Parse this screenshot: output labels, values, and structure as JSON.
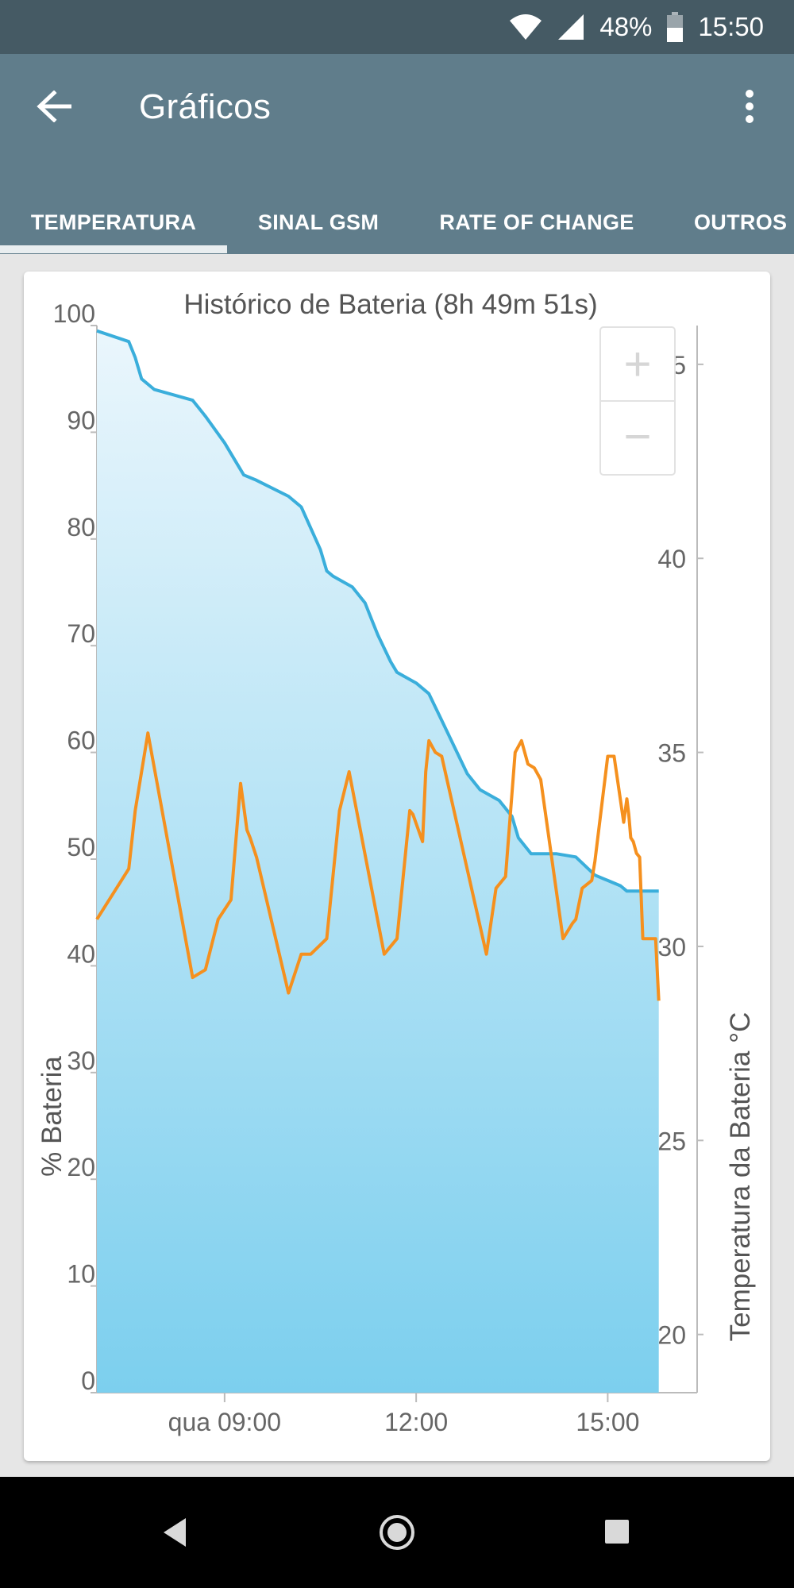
{
  "status_bar": {
    "battery_percent": "48%",
    "time": "15:50"
  },
  "app_bar": {
    "title": "Gráficos",
    "back_icon": "arrow-back-icon",
    "menu_icon": "more-vert-icon"
  },
  "tabs": [
    {
      "label": "TEMPERATURA",
      "selected": true
    },
    {
      "label": "SINAL GSM",
      "selected": false
    },
    {
      "label": "RATE OF CHANGE",
      "selected": false
    },
    {
      "label": "OUTROS",
      "selected": false
    }
  ],
  "chart": {
    "zoom_in_label": "+",
    "zoom_out_label": "−"
  },
  "chart_data": {
    "type": "area",
    "title": "Histórico de Bateria (8h 49m 51s)",
    "ylabel": "% Bateria",
    "y2label": "Temperatura da Bateria °C",
    "xticks": [
      "qua 09:00",
      "12:00",
      "15:00"
    ],
    "x_tick_hours": [
      9,
      12,
      15
    ],
    "xlim": [
      7,
      16.4
    ],
    "ylim": [
      0,
      100
    ],
    "y2lim": [
      18.5,
      46
    ],
    "yticks": [
      0,
      10,
      20,
      30,
      40,
      50,
      60,
      70,
      80,
      90,
      100
    ],
    "y2ticks": [
      20,
      25,
      30,
      35,
      40,
      45
    ],
    "colors": {
      "battery_line": "#3aaedb",
      "battery_fill_top": "#eaf6fc",
      "battery_fill_bottom": "#7ccfee",
      "temperature": "#f5901e",
      "axis": "#bbbbbb",
      "text": "#666666"
    },
    "series": [
      {
        "axis": "left",
        "x": [
          7.0,
          7.5,
          7.6,
          7.7,
          7.9,
          8.5,
          8.7,
          9.0,
          9.2,
          9.3,
          9.5,
          10.0,
          10.2,
          10.5,
          10.6,
          10.7,
          11.0,
          11.2,
          11.3,
          11.4,
          11.6,
          11.7,
          12.0,
          12.2,
          12.4,
          12.8,
          13.0,
          13.3,
          13.5,
          13.6,
          13.8,
          14.2,
          14.5,
          14.8,
          15.0,
          15.2,
          15.3,
          15.75,
          15.8
        ],
        "y": [
          99.5,
          98.5,
          97,
          95,
          94,
          93,
          91.5,
          89,
          87,
          86,
          85.5,
          84,
          83,
          79,
          77,
          76.5,
          75.5,
          74,
          72.5,
          71,
          68.5,
          67.5,
          66.5,
          65.5,
          63,
          58,
          56.5,
          55.5,
          54,
          52,
          50.5,
          50.5,
          50.2,
          48.5,
          48,
          47.5,
          47,
          47,
          47
        ]
      },
      {
        "axis": "right",
        "x": [
          7.0,
          7.5,
          7.6,
          7.8,
          8.5,
          8.7,
          8.9,
          9.1,
          9.25,
          9.35,
          9.4,
          9.5,
          10.0,
          10.2,
          10.35,
          10.6,
          10.8,
          10.95,
          11.5,
          11.7,
          11.9,
          11.95,
          12.1,
          12.15,
          12.2,
          12.3,
          12.4,
          13.1,
          13.25,
          13.4,
          13.55,
          13.65,
          13.75,
          13.85,
          13.95,
          14.3,
          14.45,
          14.5,
          14.6,
          14.75,
          14.8,
          15.0,
          15.1,
          15.25,
          15.3,
          15.33,
          15.36,
          15.4,
          15.45,
          15.5,
          15.55,
          15.75,
          15.8
        ],
        "y": [
          30.7,
          32,
          33.5,
          35.5,
          29.2,
          29.4,
          30.7,
          31.2,
          34.2,
          33,
          32.8,
          32.3,
          28.8,
          29.8,
          29.8,
          30.2,
          33.5,
          34.5,
          29.8,
          30.2,
          33.5,
          33.4,
          32.7,
          34.5,
          35.3,
          35,
          34.9,
          29.8,
          31.5,
          31.8,
          35,
          35.3,
          34.7,
          34.6,
          34.3,
          30.2,
          30.6,
          30.7,
          31.5,
          31.7,
          32.2,
          34.9,
          34.9,
          33.2,
          33.8,
          33.4,
          32.8,
          32.7,
          32.4,
          32.3,
          30.2,
          30.2,
          28.6
        ]
      }
    ]
  }
}
